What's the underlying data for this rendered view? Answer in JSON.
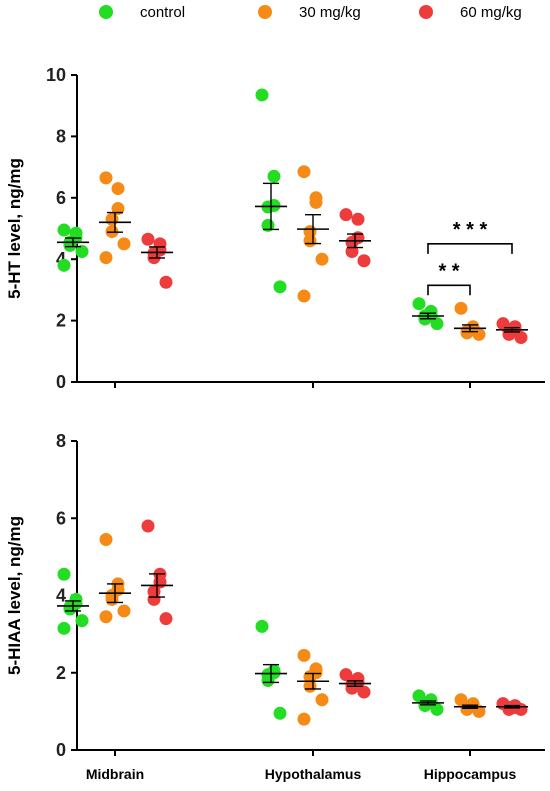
{
  "chart_data": [
    {
      "type": "scatter",
      "title": "",
      "ylabel": "5-HT level, ng/mg",
      "ylim": [
        0,
        10
      ],
      "yticks": [
        0,
        2,
        4,
        6,
        8,
        10
      ],
      "categories": [
        "Midbrain",
        "Hypothalamus",
        "Hippocampus"
      ],
      "legend": {
        "position": "top",
        "entries": [
          "control",
          "30 mg/kg",
          "60 mg/kg"
        ]
      },
      "series": [
        {
          "name": "control",
          "color": "#22dd22",
          "points": [
            [
              4.95,
              4.85,
              4.7,
              4.55,
              4.45,
              4.25,
              3.8
            ],
            [
              9.35,
              6.7,
              5.75,
              5.7,
              5.1,
              3.1
            ],
            [
              2.55,
              2.3,
              2.2,
              2.15,
              2.05,
              1.9
            ]
          ],
          "mean": [
            4.55,
            5.72,
            2.15
          ],
          "sem": [
            0.14,
            0.75,
            0.09
          ]
        },
        {
          "name": "30 mg/kg",
          "color": "#f68a16",
          "points": [
            [
              6.65,
              6.3,
              5.65,
              5.3,
              4.9,
              4.5,
              4.05
            ],
            [
              6.85,
              6.0,
              5.85,
              4.9,
              4.6,
              4.0,
              2.8
            ],
            [
              2.4,
              1.8,
              1.7,
              1.65,
              1.6,
              1.55
            ]
          ],
          "mean": [
            5.2,
            4.98,
            1.75
          ],
          "sem": [
            0.32,
            0.47,
            0.11
          ]
        },
        {
          "name": "60 mg/kg",
          "color": "#ee3b3b",
          "points": [
            [
              4.65,
              4.5,
              4.3,
              4.2,
              4.05,
              3.25
            ],
            [
              5.45,
              5.3,
              4.7,
              4.55,
              4.25,
              3.95
            ],
            [
              1.9,
              1.8,
              1.7,
              1.65,
              1.55,
              1.45
            ]
          ],
          "mean": [
            4.22,
            4.6,
            1.7
          ],
          "sem": [
            0.18,
            0.22,
            0.07
          ]
        }
      ],
      "significance": [
        {
          "category": "Hippocampus",
          "from": "control",
          "to": "30 mg/kg",
          "label": "* *",
          "y": 3.15
        },
        {
          "category": "Hippocampus",
          "from": "control",
          "to": "60 mg/kg",
          "label": "* * *",
          "y": 4.5
        }
      ]
    },
    {
      "type": "scatter",
      "title": "",
      "ylabel": "5-HIAA level, ng/mg",
      "ylim": [
        0,
        8
      ],
      "yticks": [
        0,
        2,
        4,
        6,
        8
      ],
      "categories": [
        "Midbrain",
        "Hypothalamus",
        "Hippocampus"
      ],
      "series": [
        {
          "name": "control",
          "color": "#22dd22",
          "points": [
            [
              4.55,
              3.9,
              3.8,
              3.7,
              3.65,
              3.35,
              3.15
            ],
            [
              3.2,
              2.05,
              2.0,
              1.95,
              1.8,
              0.95
            ],
            [
              1.4,
              1.3,
              1.25,
              1.2,
              1.15,
              1.05
            ]
          ],
          "mean": [
            3.73,
            1.98,
            1.22
          ],
          "sem": [
            0.13,
            0.23,
            0.05
          ]
        },
        {
          "name": "30 mg/kg",
          "color": "#f68a16",
          "points": [
            [
              5.45,
              4.3,
              4.15,
              4.0,
              3.9,
              3.6,
              3.45
            ],
            [
              2.45,
              2.1,
              2.0,
              1.9,
              1.65,
              1.3,
              0.8
            ],
            [
              1.3,
              1.2,
              1.15,
              1.1,
              1.05,
              1.0
            ]
          ],
          "mean": [
            4.06,
            1.78,
            1.12
          ],
          "sem": [
            0.24,
            0.2,
            0.04
          ]
        },
        {
          "name": "60 mg/kg",
          "color": "#ee3b3b",
          "points": [
            [
              5.8,
              4.55,
              4.35,
              4.1,
              3.9,
              3.4
            ],
            [
              1.95,
              1.85,
              1.75,
              1.7,
              1.6,
              1.5
            ],
            [
              1.2,
              1.15,
              1.1,
              1.1,
              1.05,
              1.05
            ]
          ],
          "mean": [
            4.26,
            1.72,
            1.12
          ],
          "sem": [
            0.3,
            0.07,
            0.03
          ]
        }
      ]
    }
  ]
}
